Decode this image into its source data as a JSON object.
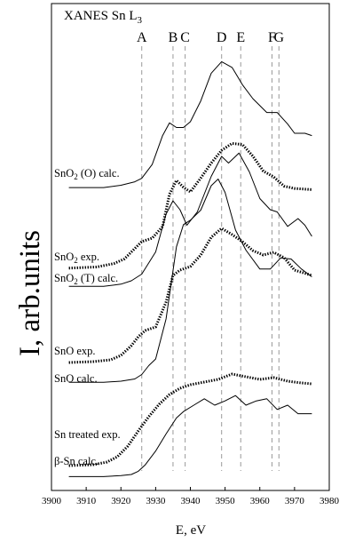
{
  "chart_data": {
    "type": "line",
    "title": "XANES Sn L",
    "title_subscript": "3",
    "xlabel": "E, eV",
    "ylabel": "I, arb.units",
    "xlim": [
      3900,
      3980
    ],
    "x_ticks": [
      "3900",
      "3910",
      "3920",
      "3930",
      "3940",
      "3950",
      "3960",
      "3970",
      "3980"
    ],
    "grid": false,
    "features": [
      {
        "label": "A",
        "energy": 3926
      },
      {
        "label": "B",
        "energy": 3935
      },
      {
        "label": "C",
        "energy": 3938.5
      },
      {
        "label": "D",
        "energy": 3949
      },
      {
        "label": "E",
        "energy": 3954.5
      },
      {
        "label": "F",
        "energy": 3963.5
      },
      {
        "label": "G",
        "energy": 3965.5
      }
    ],
    "series": [
      {
        "name": "β-Sn calc.",
        "style": "solid",
        "x": [
          3905,
          3915,
          3920,
          3923,
          3925,
          3927,
          3930,
          3933,
          3936,
          3938,
          3941,
          3944,
          3947,
          3950,
          3953,
          3956,
          3959,
          3962,
          3965,
          3968,
          3971,
          3975
        ],
        "y": [
          0.03,
          0.03,
          0.04,
          0.05,
          0.08,
          0.14,
          0.27,
          0.43,
          0.58,
          0.64,
          0.7,
          0.76,
          0.7,
          0.74,
          0.79,
          0.7,
          0.74,
          0.76,
          0.66,
          0.7,
          0.62,
          0.62
        ]
      },
      {
        "name": "Sn treated exp.",
        "style": "dotted",
        "x": [
          3905,
          3912,
          3916,
          3919,
          3922,
          3925,
          3928,
          3931,
          3934,
          3937,
          3940,
          3944,
          3948,
          3952,
          3956,
          3960,
          3964,
          3968,
          3972,
          3975
        ],
        "y": [
          0.03,
          0.04,
          0.07,
          0.13,
          0.25,
          0.42,
          0.58,
          0.72,
          0.83,
          0.9,
          0.94,
          0.97,
          1.0,
          1.06,
          1.03,
          1.0,
          1.02,
          0.98,
          0.96,
          0.95
        ]
      },
      {
        "name": "SnO calc.",
        "style": "solid",
        "x": [
          3905,
          3915,
          3920,
          3924,
          3926,
          3928,
          3930,
          3933,
          3936,
          3938,
          3940,
          3943,
          3946,
          3948,
          3950,
          3953,
          3956,
          3960,
          3963,
          3966,
          3969,
          3972,
          3975
        ],
        "y": [
          0.03,
          0.03,
          0.04,
          0.06,
          0.1,
          0.18,
          0.24,
          0.6,
          1.25,
          1.45,
          1.49,
          1.58,
          1.8,
          1.86,
          1.74,
          1.4,
          1.22,
          1.05,
          1.05,
          1.15,
          1.14,
          1.05,
          0.98
        ]
      },
      {
        "name": "SnO exp.",
        "style": "dotted",
        "x": [
          3905,
          3912,
          3917,
          3920,
          3923,
          3925,
          3927,
          3930,
          3933,
          3935,
          3937,
          3940,
          3943,
          3946,
          3949,
          3952,
          3955,
          3958,
          3961,
          3964,
          3967,
          3970,
          3975
        ],
        "y": [
          0.04,
          0.05,
          0.07,
          0.12,
          0.23,
          0.33,
          0.4,
          0.44,
          0.72,
          1.02,
          1.08,
          1.12,
          1.25,
          1.45,
          1.55,
          1.48,
          1.4,
          1.3,
          1.25,
          1.28,
          1.22,
          1.08,
          1.02
        ]
      },
      {
        "name": "SnO2 (T) calc.",
        "style": "solid",
        "x": [
          3905,
          3915,
          3920,
          3923,
          3926,
          3930,
          3933,
          3935,
          3937,
          3939,
          3942,
          3946,
          3949,
          3951,
          3954,
          3957,
          3960,
          3963,
          3965,
          3968,
          3971,
          3973,
          3975
        ],
        "y": [
          0.03,
          0.03,
          0.05,
          0.08,
          0.14,
          0.34,
          0.68,
          0.8,
          0.72,
          0.58,
          0.7,
          1.02,
          1.2,
          1.14,
          1.23,
          1.06,
          0.82,
          0.72,
          0.7,
          0.57,
          0.64,
          0.58,
          0.48
        ]
      },
      {
        "name": "SnO2 exp.",
        "style": "dotted",
        "x": [
          3905,
          3913,
          3918,
          3921,
          3924,
          3926,
          3929,
          3932,
          3934,
          3936,
          3938,
          3940,
          3943,
          3946,
          3949,
          3952,
          3955,
          3958,
          3961,
          3964,
          3967,
          3970,
          3975
        ],
        "y": [
          0.04,
          0.05,
          0.08,
          0.12,
          0.21,
          0.27,
          0.3,
          0.4,
          0.68,
          0.8,
          0.74,
          0.7,
          0.82,
          0.95,
          1.06,
          1.12,
          1.11,
          1.01,
          0.88,
          0.83,
          0.75,
          0.73,
          0.72
        ]
      },
      {
        "name": "SnO2 (O) calc.",
        "style": "solid",
        "x": [
          3905,
          3915,
          3920,
          3924,
          3926,
          3929,
          3932,
          3934,
          3936,
          3938,
          3940,
          3943,
          3946,
          3949,
          3952,
          3955,
          3958,
          3962,
          3965,
          3968,
          3970,
          3973,
          3975
        ],
        "y": [
          0.03,
          0.03,
          0.05,
          0.08,
          0.11,
          0.23,
          0.48,
          0.59,
          0.55,
          0.55,
          0.6,
          0.78,
          1.02,
          1.12,
          1.07,
          0.92,
          0.8,
          0.68,
          0.68,
          0.58,
          0.5,
          0.5,
          0.48
        ]
      }
    ],
    "series_labels": [
      "SnO2 (O) calc.",
      "SnO2 exp.",
      "SnO2 (T) calc.",
      "SnO exp.",
      "SnO calc.",
      "Sn treated exp.",
      "β-Sn calc."
    ]
  }
}
